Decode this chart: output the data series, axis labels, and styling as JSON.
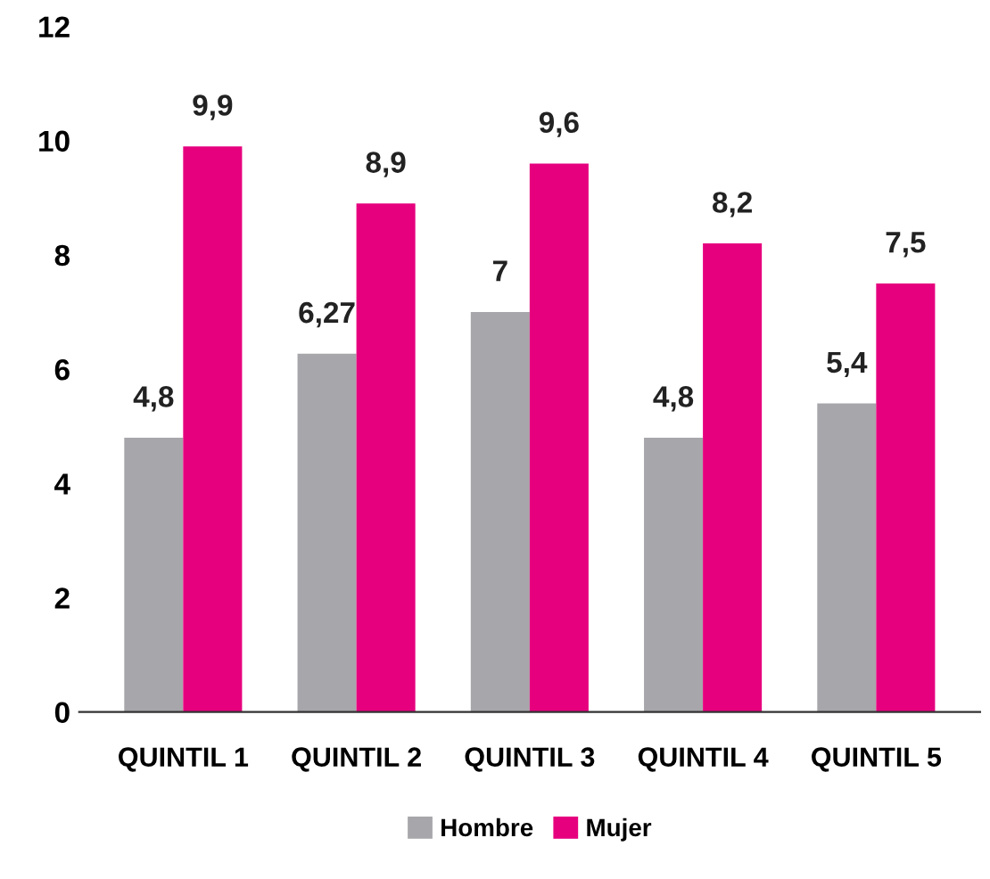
{
  "chart_data": {
    "type": "bar",
    "categories": [
      "QUINTIL 1",
      "QUINTIL 2",
      "QUINTIL 3",
      "QUINTIL 4",
      "QUINTIL 5"
    ],
    "series": [
      {
        "name": "Hombre",
        "color": "#a7a6aa",
        "values": [
          4.8,
          6.27,
          7,
          4.8,
          5.4
        ],
        "value_labels": [
          "4,8",
          "6,27",
          "7",
          "4,8",
          "5,4"
        ]
      },
      {
        "name": "Mujer",
        "color": "#e6007e",
        "values": [
          9.9,
          8.9,
          9.6,
          8.2,
          7.5
        ],
        "value_labels": [
          "9,9",
          "8,9",
          "9,6",
          "8,2",
          "7,5"
        ]
      }
    ],
    "ylim": [
      0,
      12
    ],
    "yticks": [
      0,
      2,
      4,
      6,
      8,
      10,
      12
    ],
    "grid": false,
    "legend": "bottom"
  }
}
